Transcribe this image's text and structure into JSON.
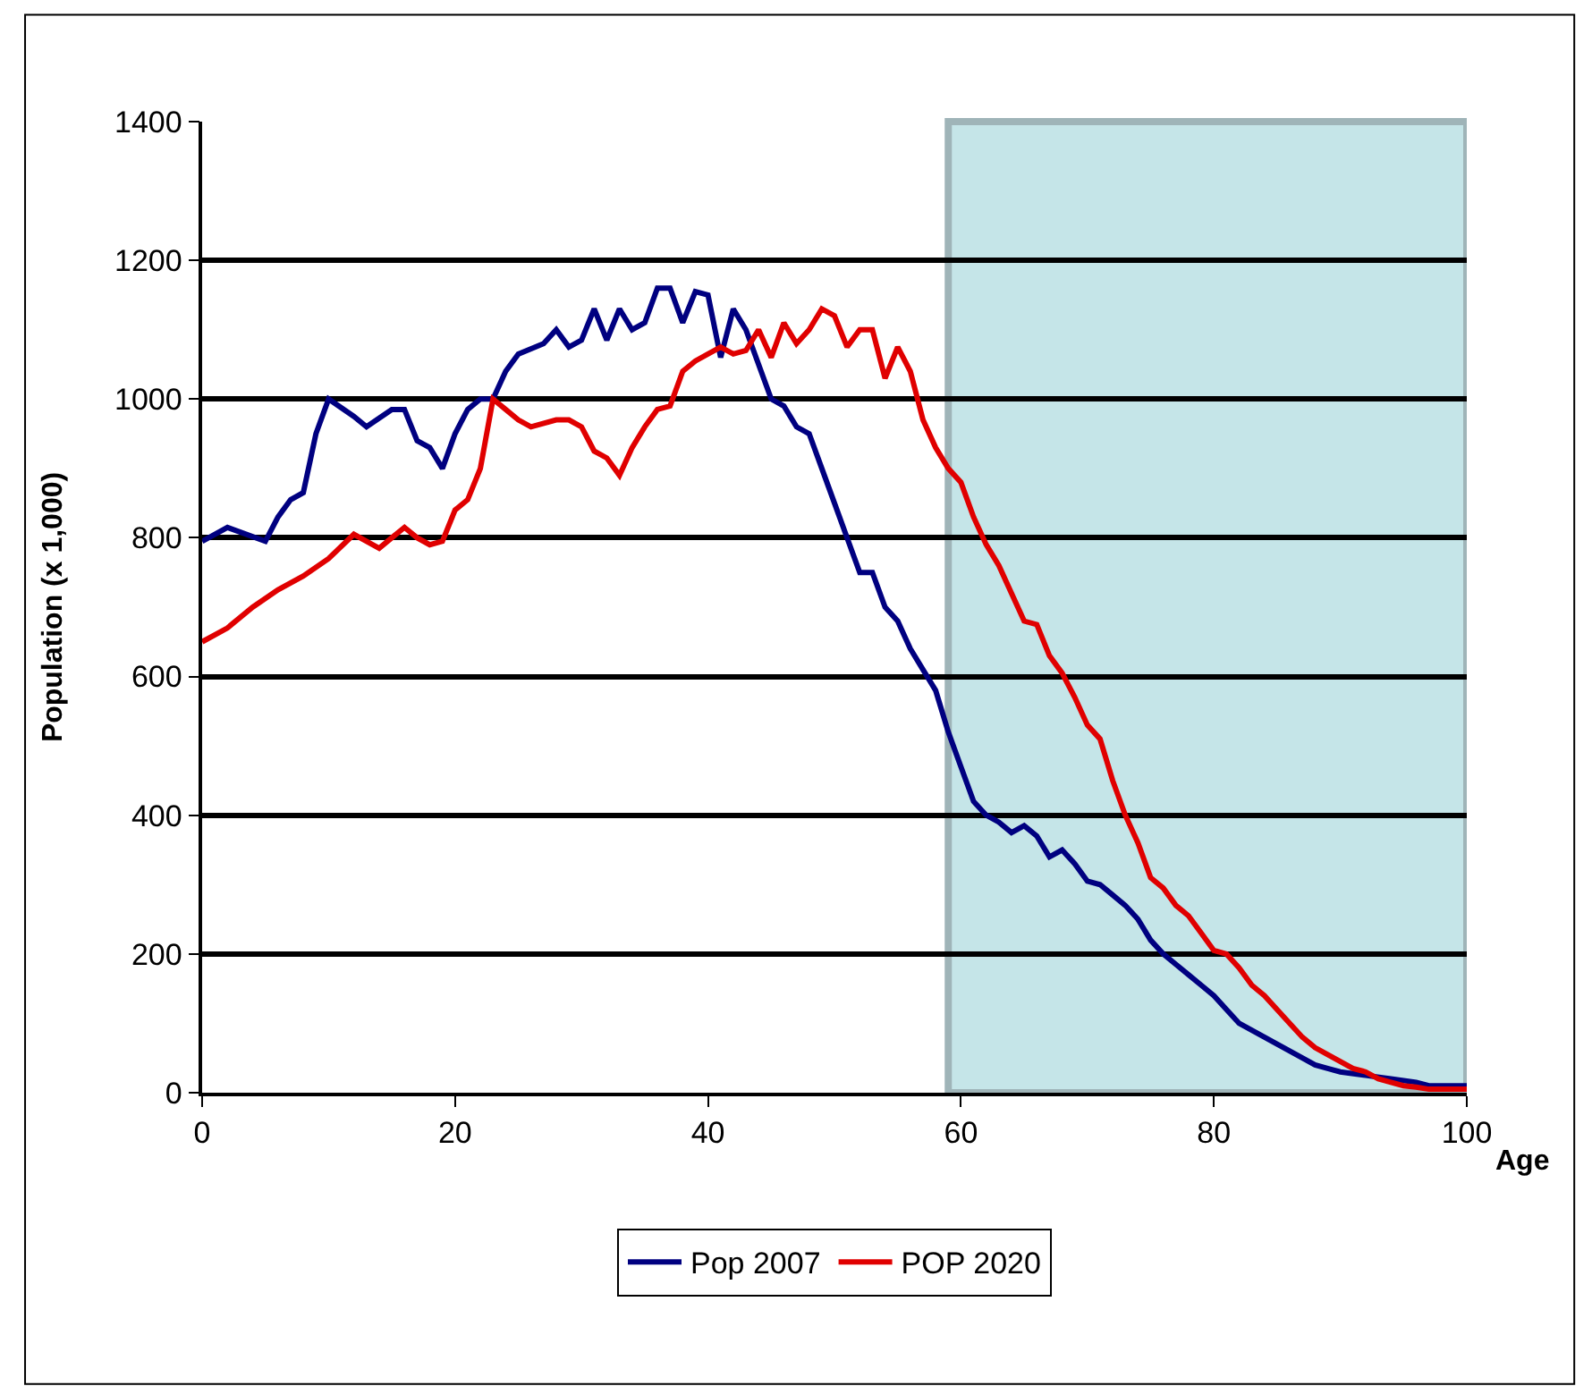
{
  "chart_data": {
    "type": "line",
    "xlabel": "Age",
    "ylabel": "Population (x 1,000)",
    "xlim": [
      0,
      100
    ],
    "xticks": [
      0,
      20,
      40,
      60,
      80,
      100
    ],
    "ylim": [
      0,
      1400
    ],
    "yticks": [
      0,
      200,
      400,
      600,
      800,
      1000,
      1200,
      1400
    ],
    "grid": "y",
    "legend": "bottom",
    "marker": "none",
    "line_style": "solid",
    "bands": [
      {
        "axis": "x",
        "from": 59,
        "to": 100,
        "color": "#c5e5e8"
      }
    ],
    "series": [
      {
        "name": "Pop 2007",
        "color": "#000080",
        "x": [
          0,
          2,
          5,
          6,
          7,
          8,
          9,
          10,
          12,
          13,
          15,
          16,
          17,
          18,
          19,
          20,
          21,
          22,
          23,
          24,
          25,
          27,
          28,
          29,
          30,
          31,
          32,
          33,
          34,
          35,
          36,
          37,
          38,
          39,
          40,
          41,
          42,
          43,
          44,
          45,
          46,
          47,
          48,
          49,
          50,
          51,
          52,
          53,
          54,
          55,
          56,
          57,
          58,
          59,
          60,
          61,
          62,
          63,
          64,
          65,
          66,
          67,
          68,
          69,
          70,
          71,
          72,
          73,
          74,
          75,
          76,
          77,
          78,
          79,
          80,
          81,
          82,
          83,
          84,
          85,
          86,
          87,
          88,
          89,
          90,
          92,
          94,
          96,
          97,
          100
        ],
        "values": [
          795,
          815,
          795,
          830,
          855,
          865,
          950,
          1000,
          975,
          960,
          985,
          985,
          940,
          930,
          900,
          950,
          985,
          1000,
          1000,
          1040,
          1065,
          1080,
          1100,
          1075,
          1085,
          1130,
          1085,
          1130,
          1100,
          1110,
          1160,
          1160,
          1110,
          1155,
          1150,
          1060,
          1130,
          1100,
          1050,
          1000,
          990,
          960,
          950,
          900,
          850,
          800,
          750,
          750,
          700,
          680,
          640,
          610,
          580,
          520,
          470,
          420,
          400,
          390,
          375,
          385,
          370,
          340,
          350,
          330,
          305,
          300,
          285,
          270,
          250,
          220,
          200,
          185,
          170,
          155,
          140,
          120,
          100,
          90,
          80,
          70,
          60,
          50,
          40,
          35,
          30,
          25,
          20,
          15,
          10,
          10
        ]
      },
      {
        "name": "POP 2020",
        "color": "#e00000",
        "x": [
          0,
          2,
          4,
          6,
          8,
          10,
          12,
          13,
          14,
          15,
          16,
          17,
          18,
          19,
          20,
          21,
          22,
          23,
          24,
          25,
          26,
          28,
          29,
          30,
          31,
          32,
          33,
          34,
          35,
          36,
          37,
          38,
          39,
          40,
          41,
          42,
          43,
          44,
          45,
          46,
          47,
          48,
          49,
          50,
          51,
          52,
          53,
          54,
          55,
          56,
          57,
          58,
          59,
          60,
          61,
          62,
          63,
          64,
          65,
          66,
          67,
          68,
          69,
          70,
          71,
          72,
          73,
          74,
          75,
          76,
          77,
          78,
          79,
          80,
          81,
          82,
          83,
          84,
          85,
          86,
          87,
          88,
          89,
          90,
          91,
          92,
          93,
          94,
          95,
          96,
          97,
          100
        ],
        "values": [
          650,
          670,
          700,
          725,
          745,
          770,
          805,
          795,
          785,
          800,
          815,
          800,
          790,
          795,
          840,
          855,
          900,
          1000,
          985,
          970,
          960,
          970,
          970,
          960,
          925,
          915,
          890,
          930,
          960,
          985,
          990,
          1040,
          1055,
          1065,
          1075,
          1065,
          1070,
          1100,
          1060,
          1110,
          1080,
          1100,
          1130,
          1120,
          1075,
          1100,
          1100,
          1030,
          1075,
          1040,
          970,
          930,
          900,
          880,
          830,
          790,
          760,
          720,
          680,
          675,
          630,
          605,
          570,
          530,
          510,
          450,
          400,
          360,
          310,
          295,
          270,
          255,
          230,
          205,
          200,
          180,
          155,
          140,
          120,
          100,
          80,
          65,
          55,
          45,
          35,
          30,
          20,
          15,
          10,
          8,
          5,
          5
        ]
      }
    ]
  }
}
